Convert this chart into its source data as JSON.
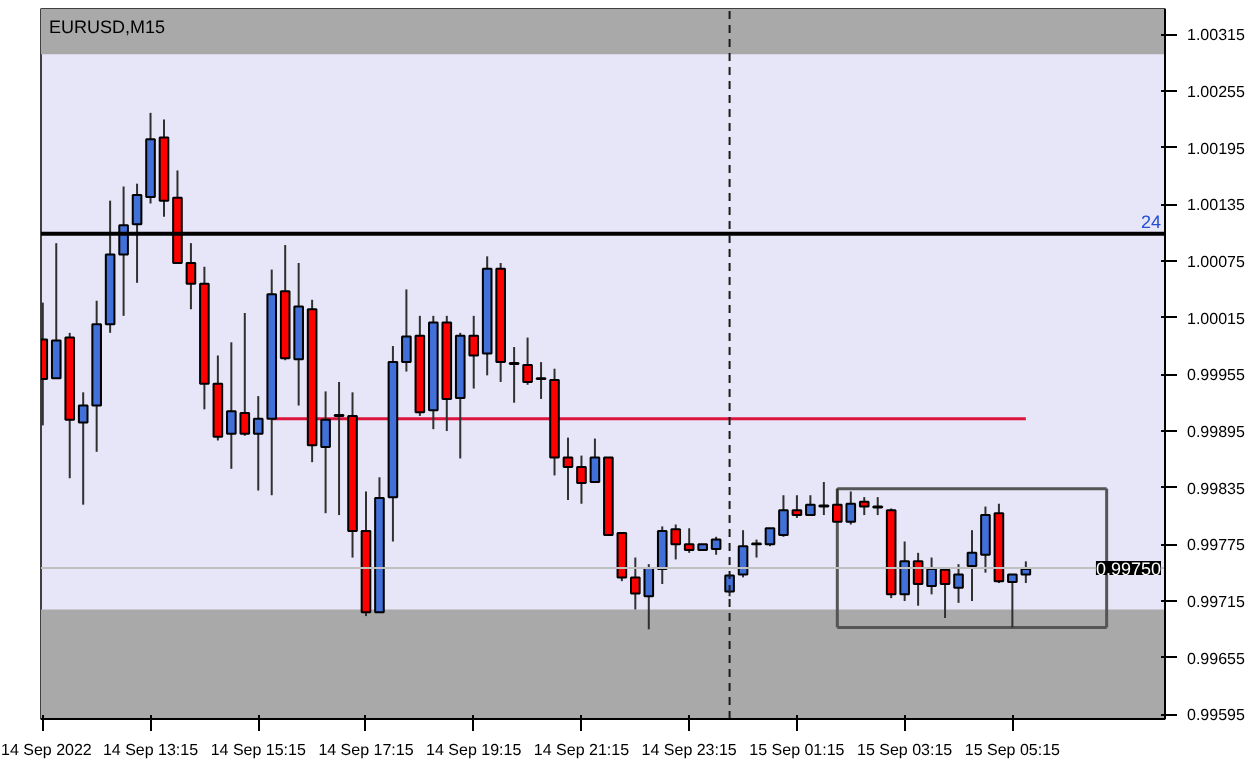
{
  "chart_data": {
    "type": "candlestick",
    "title": "EURUSD,M15",
    "x": [
      "2022-09-14T11:15",
      "2022-09-14T11:30",
      "2022-09-14T11:45",
      "2022-09-14T12:00",
      "2022-09-14T12:15",
      "2022-09-14T12:30",
      "2022-09-14T12:45",
      "2022-09-14T13:00",
      "2022-09-14T13:15",
      "2022-09-14T13:30",
      "2022-09-14T13:45",
      "2022-09-14T14:00",
      "2022-09-14T14:15",
      "2022-09-14T14:30",
      "2022-09-14T14:45",
      "2022-09-14T15:00",
      "2022-09-14T15:15",
      "2022-09-14T15:30",
      "2022-09-14T15:45",
      "2022-09-14T16:00",
      "2022-09-14T16:15",
      "2022-09-14T16:30",
      "2022-09-14T16:45",
      "2022-09-14T17:00",
      "2022-09-14T17:15",
      "2022-09-14T17:30",
      "2022-09-14T17:45",
      "2022-09-14T18:00",
      "2022-09-14T18:15",
      "2022-09-14T18:30",
      "2022-09-14T18:45",
      "2022-09-14T19:00",
      "2022-09-14T19:15",
      "2022-09-14T19:30",
      "2022-09-14T19:45",
      "2022-09-14T20:00",
      "2022-09-14T20:15",
      "2022-09-14T20:30",
      "2022-09-14T20:45",
      "2022-09-14T21:00",
      "2022-09-14T21:15",
      "2022-09-14T21:30",
      "2022-09-14T21:45",
      "2022-09-14T22:00",
      "2022-09-14T22:15",
      "2022-09-14T22:30",
      "2022-09-14T22:45",
      "2022-09-14T23:00",
      "2022-09-14T23:15",
      "2022-09-14T23:30",
      "2022-09-14T23:45",
      "2022-09-15T00:00",
      "2022-09-15T00:15",
      "2022-09-15T00:30",
      "2022-09-15T00:45",
      "2022-09-15T01:00",
      "2022-09-15T01:15",
      "2022-09-15T01:30",
      "2022-09-15T01:45",
      "2022-09-15T02:00",
      "2022-09-15T02:15",
      "2022-09-15T02:30",
      "2022-09-15T02:45",
      "2022-09-15T03:00",
      "2022-09-15T03:15",
      "2022-09-15T03:30",
      "2022-09-15T03:45",
      "2022-09-15T04:00",
      "2022-09-15T04:15",
      "2022-09-15T04:30",
      "2022-09-15T04:45",
      "2022-09-15T05:00",
      "2022-09-15T05:15",
      "2022-09-15T05:30"
    ],
    "ohlc": [
      [
        0.99992,
        1.00031,
        0.99901,
        0.9995
      ],
      [
        0.99951,
        1.00094,
        0.99951,
        0.99991
      ],
      [
        0.99994,
        0.99999,
        0.99845,
        0.99907
      ],
      [
        0.99904,
        0.99936,
        0.99817,
        0.99922
      ],
      [
        0.99922,
        1.00033,
        0.99873,
        1.00008
      ],
      [
        1.00008,
        1.00139,
        0.99999,
        1.00082
      ],
      [
        1.00082,
        1.00154,
        1.00017,
        1.00113
      ],
      [
        1.00114,
        1.00157,
        1.00052,
        1.00145
      ],
      [
        1.00143,
        1.00232,
        1.00136,
        1.00204
      ],
      [
        1.00206,
        1.00225,
        1.00122,
        1.00139
      ],
      [
        1.00142,
        1.00171,
        1.00073,
        1.00073
      ],
      [
        1.00073,
        1.00094,
        1.00024,
        1.00051
      ],
      [
        1.00051,
        1.00069,
        0.99918,
        0.99945
      ],
      [
        0.99945,
        0.99975,
        0.99885,
        0.99889
      ],
      [
        0.99892,
        0.99989,
        0.99855,
        0.99916
      ],
      [
        0.99914,
        1.0002,
        0.9989,
        0.99892
      ],
      [
        0.99892,
        0.99932,
        0.99832,
        0.99908
      ],
      [
        0.99908,
        1.00066,
        0.99827,
        1.0004
      ],
      [
        1.00043,
        1.00092,
        0.9997,
        0.99972
      ],
      [
        0.99971,
        1.00073,
        0.99922,
        1.00027
      ],
      [
        1.00024,
        1.00034,
        0.99862,
        0.9988
      ],
      [
        0.99878,
        0.99937,
        0.99808,
        0.99907
      ],
      [
        0.99911,
        0.99947,
        0.99806,
        0.99912
      ],
      [
        0.99911,
        0.99936,
        0.99761,
        0.99789
      ],
      [
        0.99789,
        0.99831,
        0.99699,
        0.99703
      ],
      [
        0.99703,
        0.99846,
        0.99703,
        0.99824
      ],
      [
        0.99825,
        0.99985,
        0.99778,
        0.99968
      ],
      [
        0.99968,
        1.00045,
        0.99958,
        0.99995
      ],
      [
        0.99996,
        1.00017,
        0.99911,
        0.99915
      ],
      [
        0.99917,
        1.00017,
        0.99897,
        1.0001
      ],
      [
        1.0001,
        1.00017,
        0.99895,
        0.99929
      ],
      [
        0.9993,
        0.99999,
        0.99866,
        0.99996
      ],
      [
        0.99996,
        1.00017,
        0.9994,
        0.99975
      ],
      [
        0.99977,
        1.0008,
        0.99954,
        1.00067
      ],
      [
        1.00067,
        1.00073,
        0.99947,
        0.99968
      ],
      [
        0.99967,
        0.99984,
        0.99925,
        0.99966
      ],
      [
        0.99965,
        0.99994,
        0.99944,
        0.99947
      ],
      [
        0.9995,
        0.99968,
        0.99929,
        0.99951
      ],
      [
        0.99949,
        0.99961,
        0.99848,
        0.99867
      ],
      [
        0.99867,
        0.99888,
        0.99822,
        0.99857
      ],
      [
        0.99857,
        0.99869,
        0.99818,
        0.9984
      ],
      [
        0.99841,
        0.99887,
        0.99841,
        0.99867
      ],
      [
        0.99867,
        0.99867,
        0.99785,
        0.99785
      ],
      [
        0.99787,
        0.99787,
        0.99736,
        0.9974
      ],
      [
        0.9974,
        0.99761,
        0.99706,
        0.99723
      ],
      [
        0.9972,
        0.99754,
        0.99685,
        0.9975
      ],
      [
        0.99749,
        0.99794,
        0.99733,
        0.99789
      ],
      [
        0.99791,
        0.99796,
        0.99759,
        0.99775
      ],
      [
        0.99775,
        0.99792,
        0.99766,
        0.99769
      ],
      [
        0.99769,
        0.99775,
        0.99768,
        0.99775
      ],
      [
        0.9977,
        0.99783,
        0.99764,
        0.9978
      ],
      [
        0.99725,
        0.99743,
        0.9972,
        0.99742
      ],
      [
        0.99743,
        0.9979,
        0.9974,
        0.99773
      ],
      [
        0.99775,
        0.9978,
        0.99761,
        0.99776
      ],
      [
        0.99775,
        0.99792,
        0.99773,
        0.99792
      ],
      [
        0.99785,
        0.99827,
        0.99783,
        0.99811
      ],
      [
        0.99811,
        0.99827,
        0.99803,
        0.99806
      ],
      [
        0.99806,
        0.99827,
        0.99806,
        0.99817
      ],
      [
        0.99816,
        0.99841,
        0.99806,
        0.99815
      ],
      [
        0.99817,
        0.99834,
        0.99799,
        0.99799
      ],
      [
        0.99799,
        0.99831,
        0.99796,
        0.99818
      ],
      [
        0.9982,
        0.99825,
        0.99806,
        0.99815
      ],
      [
        0.99815,
        0.99825,
        0.99806,
        0.99814
      ],
      [
        0.99811,
        0.99813,
        0.99718,
        0.99722
      ],
      [
        0.99722,
        0.99778,
        0.99715,
        0.99757
      ],
      [
        0.99757,
        0.99766,
        0.9971,
        0.99733
      ],
      [
        0.99731,
        0.99761,
        0.99722,
        0.99749
      ],
      [
        0.99748,
        0.9975,
        0.99697,
        0.99733
      ],
      [
        0.99729,
        0.99754,
        0.99713,
        0.99743
      ],
      [
        0.99752,
        0.9979,
        0.99715,
        0.99766
      ],
      [
        0.99764,
        0.99815,
        0.99745,
        0.99806
      ],
      [
        0.99808,
        0.99818,
        0.99734,
        0.99736
      ],
      [
        0.99735,
        0.99743,
        0.99687,
        0.99743
      ],
      [
        0.99743,
        0.99757,
        0.99734,
        0.99749
      ]
    ],
    "colors": [
      "#ff0000",
      "#4170d8",
      "#ff0000",
      "#4170d8",
      "#4170d8",
      "#4170d8",
      "#4170d8",
      "#4170d8",
      "#4170d8",
      "#ff0000",
      "#ff0000",
      "#ff0000",
      "#ff0000",
      "#ff0000",
      "#4170d8",
      "#ff0000",
      "#4170d8",
      "#4170d8",
      "#ff0000",
      "#4170d8",
      "#ff0000",
      "#4170d8",
      "#4170d8",
      "#ff0000",
      "#ff0000",
      "#4170d8",
      "#4170d8",
      "#4170d8",
      "#ff0000",
      "#4170d8",
      "#ff0000",
      "#4170d8",
      "#ff0000",
      "#4170d8",
      "#ff0000",
      "#ff0000",
      "#ff0000",
      "#4170d8",
      "#ff0000",
      "#ff0000",
      "#ff0000",
      "#4170d8",
      "#ff0000",
      "#ff0000",
      "#ff0000",
      "#4170d8",
      "#4170d8",
      "#ff0000",
      "#ff0000",
      "#4170d8",
      "#4170d8",
      "#4170d8",
      "#4170d8",
      "#4170d8",
      "#4170d8",
      "#4170d8",
      "#ff0000",
      "#4170d8",
      "#ff0000",
      "#ff0000",
      "#4170d8",
      "#ff0000",
      "#ff0000",
      "#ff0000",
      "#4170d8",
      "#ff0000",
      "#4170d8",
      "#ff0000",
      "#4170d8",
      "#4170d8",
      "#4170d8",
      "#ff0000",
      "#4170d8",
      "#4170d8"
    ],
    "series": [
      {
        "type": "line",
        "color": "#dc143c",
        "x": [
          "2022-09-14T15:30",
          "2022-09-15T05:30"
        ],
        "values": [
          0.99908,
          0.99908
        ]
      },
      {
        "type": "line",
        "color": "#555555",
        "x": [
          "2022-09-15T02:00",
          "2022-09-15T07:00"
        ],
        "values": [
          0.99834,
          0.99834
        ]
      },
      {
        "type": "line",
        "color": "#555555",
        "x": [
          "2022-09-15T07:00",
          "2022-09-15T07:00"
        ],
        "values": [
          0.99834,
          0.99687
        ]
      },
      {
        "type": "line",
        "color": "#555555",
        "x": [
          "2022-09-15T02:00",
          "2022-09-15T07:00"
        ],
        "values": [
          0.99687,
          0.99687
        ]
      },
      {
        "type": "line",
        "color": "#555555",
        "x": [
          "2022-09-15T02:00",
          "2022-09-15T02:00"
        ],
        "values": [
          0.99687,
          0.99834
        ]
      }
    ],
    "annotations": [
      "24"
    ],
    "ref_lines": [
      {
        "axis": "y",
        "value": 1.00104,
        "color": "#000000"
      },
      {
        "axis": "y",
        "value": 0.9975,
        "label": "0.99750",
        "color": "#c0c0c0"
      },
      {
        "axis": "x",
        "value": "2022-09-15T00:00",
        "color": "#1a1a1a",
        "line_style": "dashed"
      }
    ],
    "bands": [
      {
        "axis": "y",
        "from": 1.00294,
        "to": 1.00342,
        "color": "#a9a9a9"
      },
      {
        "axis": "y",
        "from": 0.9959,
        "to": 0.99706,
        "color": "#a9a9a9"
      }
    ],
    "xlim": [
      "2022-09-14T11:13",
      "2022-09-15T08:05"
    ],
    "ylim": [
      0.9959,
      1.00342
    ],
    "xticks": [
      {
        "value": "2022-09-14T11:15",
        "label": "14 Sep 2022"
      },
      {
        "value": "2022-09-14T13:15",
        "label": "14 Sep 13:15"
      },
      {
        "value": "2022-09-14T15:15",
        "label": "14 Sep 15:15"
      },
      {
        "value": "2022-09-14T17:15",
        "label": "14 Sep 17:15"
      },
      {
        "value": "2022-09-14T19:15",
        "label": "14 Sep 19:15"
      },
      {
        "value": "2022-09-14T21:15",
        "label": "14 Sep 21:15"
      },
      {
        "value": "2022-09-14T23:15",
        "label": "14 Sep 23:15"
      },
      {
        "value": "2022-09-15T01:15",
        "label": "15 Sep 01:15"
      },
      {
        "value": "2022-09-15T03:15",
        "label": "15 Sep 03:15"
      },
      {
        "value": "2022-09-15T05:15",
        "label": "15 Sep 05:15"
      }
    ],
    "yticks": [
      0.99595,
      0.99655,
      0.99715,
      0.99775,
      0.99835,
      0.99895,
      0.99955,
      1.00015,
      1.00075,
      1.00135,
      1.00195,
      1.00255,
      1.00315
    ],
    "grid": false
  }
}
